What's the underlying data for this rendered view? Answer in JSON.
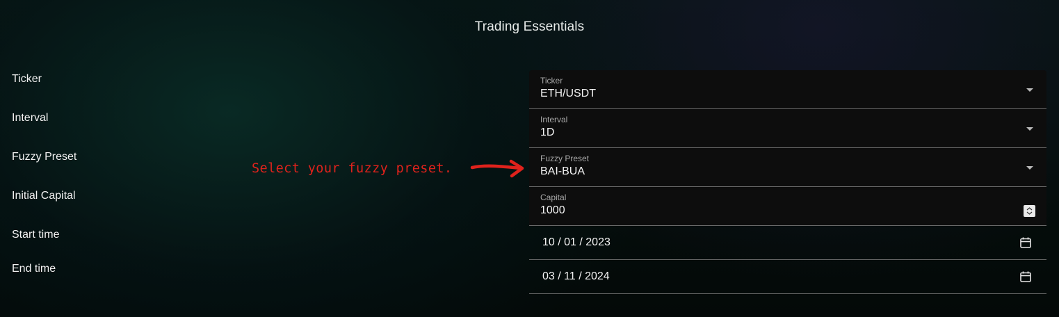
{
  "page": {
    "title": "Trading Essentials"
  },
  "labels": {
    "ticker": "Ticker",
    "interval": "Interval",
    "fuzzy_preset": "Fuzzy Preset",
    "initial_capital": "Initial Capital",
    "start_time": "Start time",
    "end_time": "End time"
  },
  "annotation": {
    "text": "Select your fuzzy preset.",
    "color": "#e0221c"
  },
  "form": {
    "ticker": {
      "label": "Ticker",
      "value": "ETH/USDT"
    },
    "interval": {
      "label": "Interval",
      "value": "1D"
    },
    "fuzzy_preset": {
      "label": "Fuzzy Preset",
      "value": "BAI-BUA"
    },
    "capital": {
      "label": "Capital",
      "value": "1000"
    },
    "start_date": {
      "value": "10 / 01 / 2023"
    },
    "end_date": {
      "value": "03 / 11 / 2024"
    }
  },
  "icons": {
    "dropdown": "chevron-down-icon",
    "calendar": "calendar-icon",
    "stepper": "number-stepper-icon",
    "arrow": "arrow-right-icon"
  }
}
